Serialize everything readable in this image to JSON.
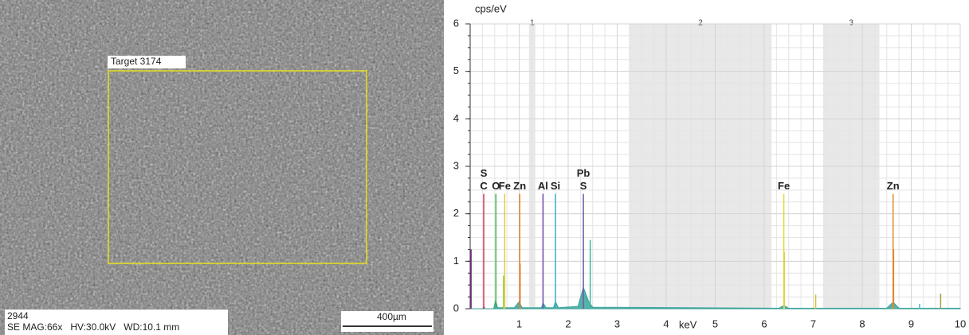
{
  "sem_image": {
    "target_label": "Target 3174",
    "image_id": "2944",
    "info": "SE MAG:66x   HV:30.0kV   WD:10.1 mm",
    "scale_bar": "400µm"
  },
  "chart_data": {
    "type": "spectrum",
    "ylabel": "cps/eV",
    "xlabel": "keV",
    "xlim": [
      0,
      10
    ],
    "xticks": [
      1,
      2,
      3,
      4,
      5,
      6,
      7,
      8,
      9,
      10
    ],
    "ylim": [
      0,
      6
    ],
    "yticks": [
      0,
      1,
      2,
      3,
      4,
      5,
      6
    ],
    "grid": true,
    "regions": [
      {
        "label": "1",
        "range": [
          1.2,
          1.33
        ]
      },
      {
        "label": "2",
        "range": [
          3.25,
          6.15
        ]
      },
      {
        "label": "3",
        "range": [
          7.2,
          8.35
        ]
      }
    ],
    "element_lines": [
      {
        "labels": [
          "S",
          "C"
        ],
        "x": 0.277,
        "value": 2.42,
        "color": "#d6305a"
      },
      {
        "labels": [
          "O"
        ],
        "x": 0.525,
        "value": 2.42,
        "color": "#3cb84a"
      },
      {
        "labels": [
          "Fe"
        ],
        "x": 0.705,
        "value": 2.42,
        "color": "#d8d040"
      },
      {
        "labels": [
          "Zn"
        ],
        "x": 1.012,
        "value": 2.42,
        "color": "#e08030"
      },
      {
        "labels": [
          "Al"
        ],
        "x": 1.486,
        "value": 2.42,
        "color": "#7050b0"
      },
      {
        "labels": [
          "Si"
        ],
        "x": 1.74,
        "value": 2.42,
        "color": "#40b0c8"
      },
      {
        "labels": [
          "Pb",
          "S"
        ],
        "x": 2.31,
        "value": 2.42,
        "color": "#6a5aa8"
      },
      {
        "labels": [
          "Fe"
        ],
        "x": 6.4,
        "value": 2.42,
        "color": "#e0d840"
      },
      {
        "labels": [
          "Zn"
        ],
        "x": 8.63,
        "value": 2.42,
        "color": "#e09030"
      }
    ],
    "spectrum": {
      "color": "#3aa39a",
      "x": [
        0,
        0.26,
        0.28,
        0.3,
        0.48,
        0.52,
        0.56,
        0.9,
        1.0,
        1.06,
        1.45,
        1.49,
        1.55,
        1.7,
        1.74,
        1.8,
        2.2,
        2.31,
        2.42,
        2.5,
        3,
        6.3,
        6.4,
        6.5,
        8.5,
        8.63,
        8.75,
        10
      ],
      "values": [
        0,
        0,
        0.06,
        0,
        0,
        0.18,
        0.02,
        0.02,
        0.15,
        0.02,
        0.02,
        0.12,
        0.02,
        0.02,
        0.15,
        0.02,
        0.05,
        0.45,
        0.15,
        0.03,
        0.03,
        0.01,
        0.07,
        0.01,
        0.01,
        0.14,
        0.01,
        0.01
      ]
    },
    "spikes": [
      {
        "x": 0.02,
        "value": 1.25,
        "color": "#8a3a9a"
      },
      {
        "x": 0.68,
        "value": 0.7,
        "color": "#9ad040"
      },
      {
        "x": 1.02,
        "value": 0.95,
        "color": "#e08030"
      },
      {
        "x": 2.45,
        "value": 1.45,
        "color": "#3ab89a"
      },
      {
        "x": 6.41,
        "value": 1.2,
        "color": "#d8d040"
      },
      {
        "x": 7.05,
        "value": 0.3,
        "color": "#d8c030"
      },
      {
        "x": 8.64,
        "value": 1.25,
        "color": "#e07a20"
      },
      {
        "x": 9.17,
        "value": 0.1,
        "color": "#40c0c8"
      },
      {
        "x": 9.6,
        "value": 0.32,
        "color": "#a8a040"
      }
    ]
  }
}
